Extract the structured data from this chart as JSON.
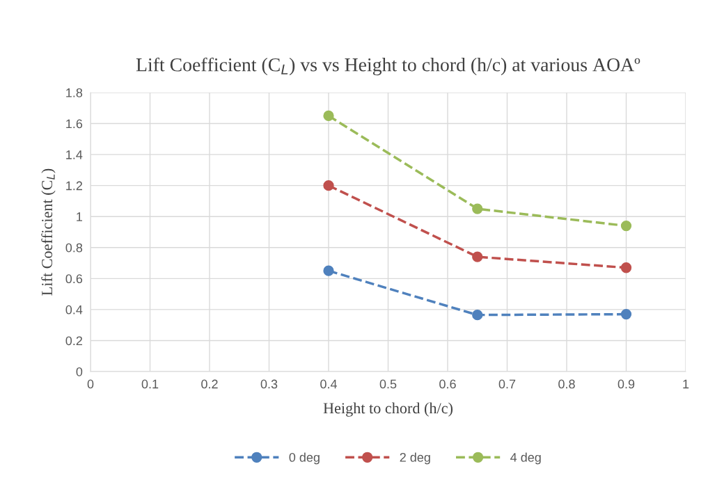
{
  "chart_data": {
    "type": "line",
    "title": "Lift Coefficient (C$_{L}$) vs vs Height to chord (h/c) at various AOAº",
    "xlabel": "Height to chord (h/c)",
    "ylabel": "Lift Coefficient (C$_{L}$)",
    "x": [
      0.4,
      0.65,
      0.9
    ],
    "series": [
      {
        "name": "0 deg",
        "color": "#4f81bd",
        "values": [
          0.65,
          0.365,
          0.37
        ]
      },
      {
        "name": "2 deg",
        "color": "#c0504d",
        "values": [
          1.2,
          0.74,
          0.67
        ]
      },
      {
        "name": "4 deg",
        "color": "#9bbb59",
        "values": [
          1.65,
          1.05,
          0.94
        ]
      }
    ],
    "xlim": [
      0,
      1
    ],
    "xticks": [
      0,
      0.1,
      0.2,
      0.3,
      0.4,
      0.5,
      0.6,
      0.7,
      0.8,
      0.9,
      1
    ],
    "ylim": [
      0,
      1.8
    ],
    "yticks": [
      0,
      0.2,
      0.4,
      0.6,
      0.8,
      1,
      1.2,
      1.4,
      1.6,
      1.8
    ],
    "grid": true,
    "legend": "bottom",
    "marker": "circle",
    "line_style": "dashed"
  }
}
